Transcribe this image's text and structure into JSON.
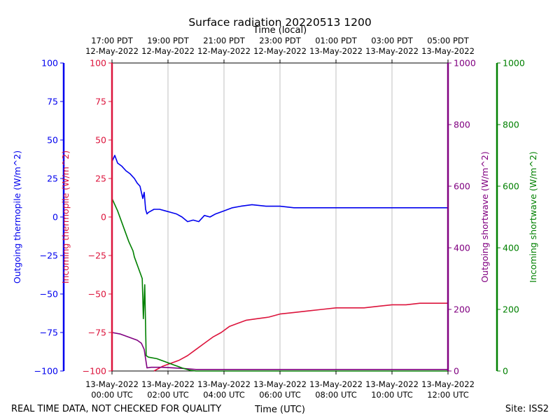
{
  "chart_data": {
    "type": "line",
    "title": "Surface radiation 20220513 1200",
    "top_axis_label": "Time (local)",
    "xlabel": "Time (UTC)",
    "footer_left": "REAL TIME DATA, NOT CHECKED FOR QUALITY",
    "footer_right": "Site: ISS2",
    "x_range_hours": [
      0,
      12
    ],
    "x_ticks_utc": [
      {
        "h": 0,
        "line1": "13-May-2022",
        "line2": "00:00 UTC"
      },
      {
        "h": 2,
        "line1": "13-May-2022",
        "line2": "02:00 UTC"
      },
      {
        "h": 4,
        "line1": "13-May-2022",
        "line2": "04:00 UTC"
      },
      {
        "h": 6,
        "line1": "13-May-2022",
        "line2": "06:00 UTC"
      },
      {
        "h": 8,
        "line1": "13-May-2022",
        "line2": "08:00 UTC"
      },
      {
        "h": 10,
        "line1": "13-May-2022",
        "line2": "10:00 UTC"
      },
      {
        "h": 12,
        "line1": "13-May-2022",
        "line2": "12:00 UTC"
      }
    ],
    "x_ticks_local": [
      {
        "h": 0,
        "line1": "17:00 PDT",
        "line2": "12-May-2022"
      },
      {
        "h": 2,
        "line1": "19:00 PDT",
        "line2": "12-May-2022"
      },
      {
        "h": 4,
        "line1": "21:00 PDT",
        "line2": "12-May-2022"
      },
      {
        "h": 6,
        "line1": "23:00 PDT",
        "line2": "12-May-2022"
      },
      {
        "h": 8,
        "line1": "01:00 PDT",
        "line2": "13-May-2022"
      },
      {
        "h": 10,
        "line1": "03:00 PDT",
        "line2": "13-May-2022"
      },
      {
        "h": 12,
        "line1": "05:00 PDT",
        "line2": "13-May-2022"
      }
    ],
    "axes": [
      {
        "id": "outgoing_thermopile",
        "label": "Outgoing thermopile (W/m^2)",
        "color": "#0000ee",
        "ylim": [
          -100,
          100
        ],
        "ticks": [
          -100,
          -75,
          -50,
          -25,
          0,
          25,
          50,
          75,
          100
        ]
      },
      {
        "id": "incoming_thermopile",
        "label": "Incoming thermopile (W/m^2)",
        "color": "#dc143c",
        "ylim": [
          -100,
          100
        ],
        "ticks": [
          -100,
          -75,
          -50,
          -25,
          0,
          25,
          50,
          75,
          100
        ]
      },
      {
        "id": "outgoing_shortwave",
        "label": "Outgoing shortwave (W/m^2)",
        "color": "#800080",
        "ylim": [
          0,
          1000
        ],
        "ticks": [
          0,
          200,
          400,
          600,
          800,
          1000
        ]
      },
      {
        "id": "incoming_shortwave",
        "label": "Incoming shortwave (W/m^2)",
        "color": "#008000",
        "ylim": [
          0,
          1000
        ],
        "ticks": [
          0,
          200,
          400,
          600,
          800,
          1000
        ]
      }
    ],
    "series": [
      {
        "name": "Outgoing thermopile",
        "axis": "outgoing_thermopile",
        "color": "#0000ee",
        "x": [
          0,
          0.1,
          0.2,
          0.35,
          0.5,
          0.65,
          0.8,
          0.9,
          1.0,
          1.1,
          1.15,
          1.2,
          1.25,
          1.3,
          1.5,
          1.7,
          1.9,
          2.1,
          2.3,
          2.5,
          2.7,
          2.9,
          3.1,
          3.3,
          3.5,
          3.7,
          4.0,
          4.3,
          4.6,
          5.0,
          5.5,
          6.0,
          6.5,
          7.0,
          7.5,
          8.0,
          8.5,
          9.0,
          9.5,
          10.0,
          10.5,
          11.0,
          11.5,
          12.0
        ],
        "y": [
          36,
          40,
          35,
          33,
          30,
          28,
          25,
          22,
          20,
          12,
          16,
          5,
          2,
          3,
          5,
          5,
          4,
          3,
          2,
          0,
          -3,
          -2,
          -3,
          1,
          0,
          2,
          4,
          6,
          7,
          8,
          7,
          7,
          6,
          6,
          6,
          6,
          6,
          6,
          6,
          6,
          6,
          6,
          6,
          6
        ]
      },
      {
        "name": "Incoming thermopile",
        "axis": "incoming_thermopile",
        "color": "#dc143c",
        "x": [
          1.5,
          1.8,
          2.1,
          2.4,
          2.7,
          3.0,
          3.3,
          3.6,
          3.9,
          4.2,
          4.5,
          4.8,
          5.2,
          5.6,
          6.0,
          6.5,
          7.0,
          7.5,
          8.0,
          8.5,
          9.0,
          9.5,
          10.0,
          10.5,
          11.0,
          11.5,
          12.0
        ],
        "y": [
          -100,
          -97,
          -95,
          -93,
          -90,
          -86,
          -82,
          -78,
          -75,
          -71,
          -69,
          -67,
          -66,
          -65,
          -63,
          -62,
          -61,
          -60,
          -59,
          -59,
          -59,
          -58,
          -57,
          -57,
          -56,
          -56,
          -56
        ]
      },
      {
        "name": "Outgoing shortwave",
        "axis": "outgoing_shortwave",
        "color": "#800080",
        "x": [
          0,
          0.3,
          0.6,
          0.9,
          1.05,
          1.15,
          1.25,
          1.4,
          1.8,
          2.2,
          2.6,
          3.0,
          3.5,
          4.0,
          5.0,
          6.0,
          7.0,
          8.0,
          9.0,
          10.0,
          11.0,
          12.0
        ],
        "y": [
          125,
          120,
          110,
          100,
          90,
          70,
          10,
          12,
          12,
          10,
          8,
          5,
          5,
          5,
          5,
          5,
          5,
          5,
          5,
          5,
          5,
          5
        ]
      },
      {
        "name": "Incoming shortwave",
        "axis": "incoming_shortwave",
        "color": "#008000",
        "x": [
          0,
          0.2,
          0.4,
          0.6,
          0.75,
          0.8,
          0.9,
          1.0,
          1.08,
          1.12,
          1.17,
          1.22,
          1.3,
          1.6,
          1.9,
          2.2,
          2.5,
          2.8,
          3.0,
          3.5,
          4.0,
          5.0,
          6.0,
          7.0,
          8.0,
          9.0,
          10.0,
          11.0,
          12.0
        ],
        "y": [
          560,
          520,
          470,
          420,
          390,
          370,
          345,
          320,
          300,
          170,
          280,
          50,
          45,
          40,
          30,
          20,
          10,
          2,
          0,
          0,
          0,
          0,
          0,
          0,
          0,
          0,
          0,
          0,
          0
        ]
      }
    ]
  }
}
